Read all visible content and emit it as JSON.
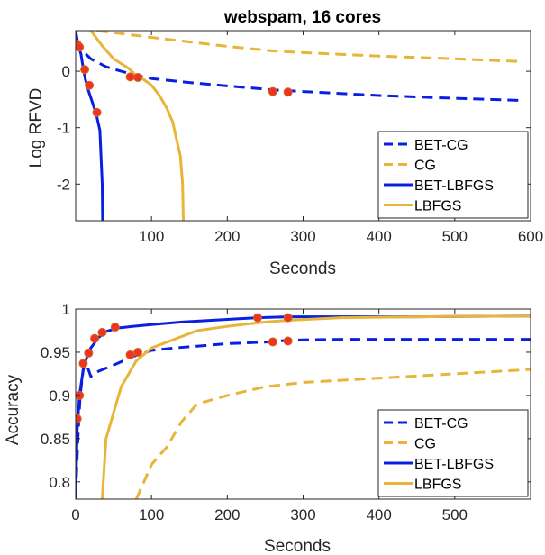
{
  "colors": {
    "blue": "#0b1fe0",
    "gold": "#e6b53a",
    "marker": "#ee3322",
    "marker_edge": "#d2691e"
  },
  "chart_data": [
    {
      "type": "line",
      "title": "webspam, 16 cores",
      "xlabel": "Seconds",
      "ylabel": "Log RFVD",
      "xlim": [
        0,
        600
      ],
      "ylim": [
        -2.65,
        0.72
      ],
      "xticks": [
        100,
        200,
        300,
        400,
        500,
        600
      ],
      "xtick_labels": [
        "100",
        "200",
        "300",
        "400",
        "500",
        "600"
      ],
      "yticks": [
        0,
        -1,
        -2
      ],
      "ytick_labels": [
        "0",
        "-1",
        "-2"
      ],
      "grid": false,
      "legend_position": "lower-right",
      "series": [
        {
          "name": "BET-CG",
          "color": "#0b1fe0",
          "style": "dashed",
          "x": [
            0,
            10,
            20,
            40,
            60,
            80,
            100,
            150,
            200,
            260,
            300,
            400,
            500,
            590
          ],
          "y": [
            0.55,
            0.35,
            0.22,
            0.08,
            0.0,
            -0.07,
            -0.13,
            -0.2,
            -0.26,
            -0.33,
            -0.36,
            -0.43,
            -0.48,
            -0.52
          ]
        },
        {
          "name": "CG",
          "color": "#e6b53a",
          "style": "dashed",
          "x": [
            28,
            100,
            200,
            260,
            300,
            400,
            500,
            590
          ],
          "y": [
            0.72,
            0.6,
            0.44,
            0.36,
            0.33,
            0.27,
            0.22,
            0.17
          ]
        },
        {
          "name": "BET-LBFGS",
          "color": "#0b1fe0",
          "style": "solid",
          "x": [
            0,
            3,
            7,
            10,
            13,
            17,
            22,
            27,
            32,
            35,
            35.5
          ],
          "y": [
            0.72,
            0.5,
            0.3,
            0.05,
            -0.15,
            -0.35,
            -0.55,
            -0.75,
            -1.05,
            -2.0,
            -2.65
          ]
        },
        {
          "name": "LBFGS",
          "color": "#e6b53a",
          "style": "solid",
          "x": [
            20,
            35,
            50,
            70,
            80,
            90,
            100,
            110,
            120,
            128,
            133,
            138,
            141,
            142
          ],
          "y": [
            0.72,
            0.45,
            0.22,
            0.05,
            -0.08,
            -0.15,
            -0.25,
            -0.42,
            -0.65,
            -0.9,
            -1.2,
            -1.5,
            -2.0,
            -2.65
          ]
        }
      ],
      "markers": {
        "color": "#ee3322",
        "points": [
          [
            2,
            0.48
          ],
          [
            5,
            0.43
          ],
          [
            12,
            0.03
          ],
          [
            18,
            -0.25
          ],
          [
            28,
            -0.73
          ],
          [
            72,
            -0.1
          ],
          [
            82,
            -0.11
          ],
          [
            260,
            -0.36
          ],
          [
            280,
            -0.37
          ]
        ]
      },
      "legend": [
        "BET-CG",
        "CG",
        "BET-LBFGS",
        "LBFGS"
      ]
    },
    {
      "type": "line",
      "title": "",
      "xlabel": "Seconds",
      "ylabel": "Accuracy",
      "xlim": [
        0,
        600
      ],
      "ylim": [
        0.78,
        1.0
      ],
      "xticks": [
        0,
        100,
        200,
        300,
        400,
        500
      ],
      "xtick_labels": [
        "0",
        "100",
        "200",
        "300",
        "400",
        "500"
      ],
      "yticks": [
        1,
        0.95,
        0.9,
        0.85,
        0.8
      ],
      "ytick_labels": [
        "1",
        "0.95",
        "0.9",
        "0.85",
        "0.8"
      ],
      "grid": false,
      "legend_position": "lower-right",
      "series": [
        {
          "name": "BET-CG",
          "color": "#0b1fe0",
          "style": "dashed",
          "x": [
            0,
            3,
            6,
            10,
            14,
            20,
            30,
            50,
            75,
            100,
            130,
            160,
            200,
            260,
            280,
            350,
            400,
            500,
            600
          ],
          "y": [
            0.785,
            0.85,
            0.9,
            0.93,
            0.937,
            0.922,
            0.928,
            0.935,
            0.945,
            0.952,
            0.955,
            0.957,
            0.96,
            0.962,
            0.964,
            0.965,
            0.965,
            0.965,
            0.965
          ]
        },
        {
          "name": "CG",
          "color": "#e6b53a",
          "style": "dashed",
          "x": [
            80,
            90,
            100,
            120,
            140,
            160,
            200,
            250,
            300,
            400,
            500,
            600
          ],
          "y": [
            0.78,
            0.8,
            0.82,
            0.84,
            0.87,
            0.89,
            0.9,
            0.91,
            0.915,
            0.92,
            0.925,
            0.93
          ]
        },
        {
          "name": "BET-LBFGS",
          "color": "#0b1fe0",
          "style": "solid",
          "x": [
            0,
            2,
            5,
            10,
            15,
            20,
            30,
            40,
            55,
            75,
            100,
            140,
            200,
            240,
            280,
            350,
            450,
            600
          ],
          "y": [
            0.78,
            0.86,
            0.9,
            0.93,
            0.945,
            0.955,
            0.967,
            0.974,
            0.978,
            0.98,
            0.982,
            0.985,
            0.988,
            0.99,
            0.991,
            0.991,
            0.991,
            0.992
          ]
        },
        {
          "name": "LBFGS",
          "color": "#e6b53a",
          "style": "solid",
          "x": [
            35,
            40,
            50,
            60,
            70,
            80,
            100,
            130,
            160,
            200,
            250,
            280,
            350,
            450,
            600
          ],
          "y": [
            0.78,
            0.85,
            0.88,
            0.91,
            0.925,
            0.94,
            0.955,
            0.965,
            0.975,
            0.98,
            0.985,
            0.987,
            0.99,
            0.991,
            0.992
          ]
        }
      ],
      "markers": {
        "color": "#ee3322",
        "points": [
          [
            2,
            0.873
          ],
          [
            5,
            0.9
          ],
          [
            10,
            0.937
          ],
          [
            17,
            0.949
          ],
          [
            25,
            0.966
          ],
          [
            35,
            0.973
          ],
          [
            52,
            0.979
          ],
          [
            72,
            0.947
          ],
          [
            82,
            0.95
          ],
          [
            240,
            0.99
          ],
          [
            260,
            0.962
          ],
          [
            280,
            0.963
          ],
          [
            280,
            0.99
          ]
        ]
      },
      "legend": [
        "BET-CG",
        "CG",
        "BET-LBFGS",
        "LBFGS"
      ]
    }
  ]
}
